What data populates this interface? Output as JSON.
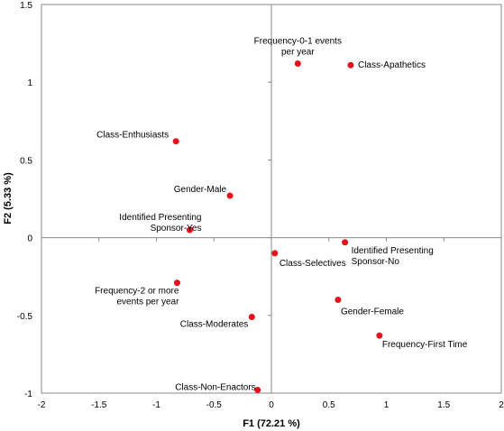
{
  "chart_data": {
    "type": "scatter",
    "title": "",
    "xlabel": "F1 (72.21 %)",
    "ylabel": "F2 (5.33 %)",
    "xlim": [
      -2,
      2
    ],
    "ylim": [
      -1,
      1.5
    ],
    "x_ticks": [
      -2,
      -1.5,
      -1,
      -0.5,
      0,
      0.5,
      1,
      1.5,
      2
    ],
    "y_ticks": [
      -1,
      -0.5,
      0,
      0.5,
      1,
      1.5
    ],
    "x_tick_labels": [
      "-2",
      "-1.5",
      "-1",
      "-0.5",
      "0",
      "0.5",
      "1",
      "1.5",
      "2"
    ],
    "y_tick_labels": [
      "-1",
      "-0.5",
      "0",
      "0.5",
      "1",
      "1.5"
    ],
    "grid": false,
    "point_color": "#e8101a",
    "points": [
      {
        "label": [
          "Frequency-0-1 events",
          "per year"
        ],
        "x": 0.23,
        "y": 1.12
      },
      {
        "label": [
          "Class-Apathetics"
        ],
        "x": 0.69,
        "y": 1.11
      },
      {
        "label": [
          "Class-Enthusiasts"
        ],
        "x": -0.83,
        "y": 0.62
      },
      {
        "label": [
          "Gender-Male"
        ],
        "x": -0.36,
        "y": 0.27
      },
      {
        "label": [
          "Identified Presenting",
          "Sponsor-Yes"
        ],
        "x": -0.71,
        "y": 0.05
      },
      {
        "label": [
          "Identified Presenting",
          "Sponsor-No"
        ],
        "x": 0.64,
        "y": -0.03
      },
      {
        "label": [
          "Class-Selectives"
        ],
        "x": 0.03,
        "y": -0.1
      },
      {
        "label": [
          "Frequency-2 or more",
          "events per year"
        ],
        "x": -0.82,
        "y": -0.29
      },
      {
        "label": [
          "Gender-Female"
        ],
        "x": 0.58,
        "y": -0.4
      },
      {
        "label": [
          "Class-Moderates"
        ],
        "x": -0.17,
        "y": -0.51
      },
      {
        "label": [
          "Frequency-First Time"
        ],
        "x": 0.94,
        "y": -0.63
      },
      {
        "label": [
          "Class-Non-Enactors"
        ],
        "x": -0.12,
        "y": -0.98
      }
    ]
  }
}
